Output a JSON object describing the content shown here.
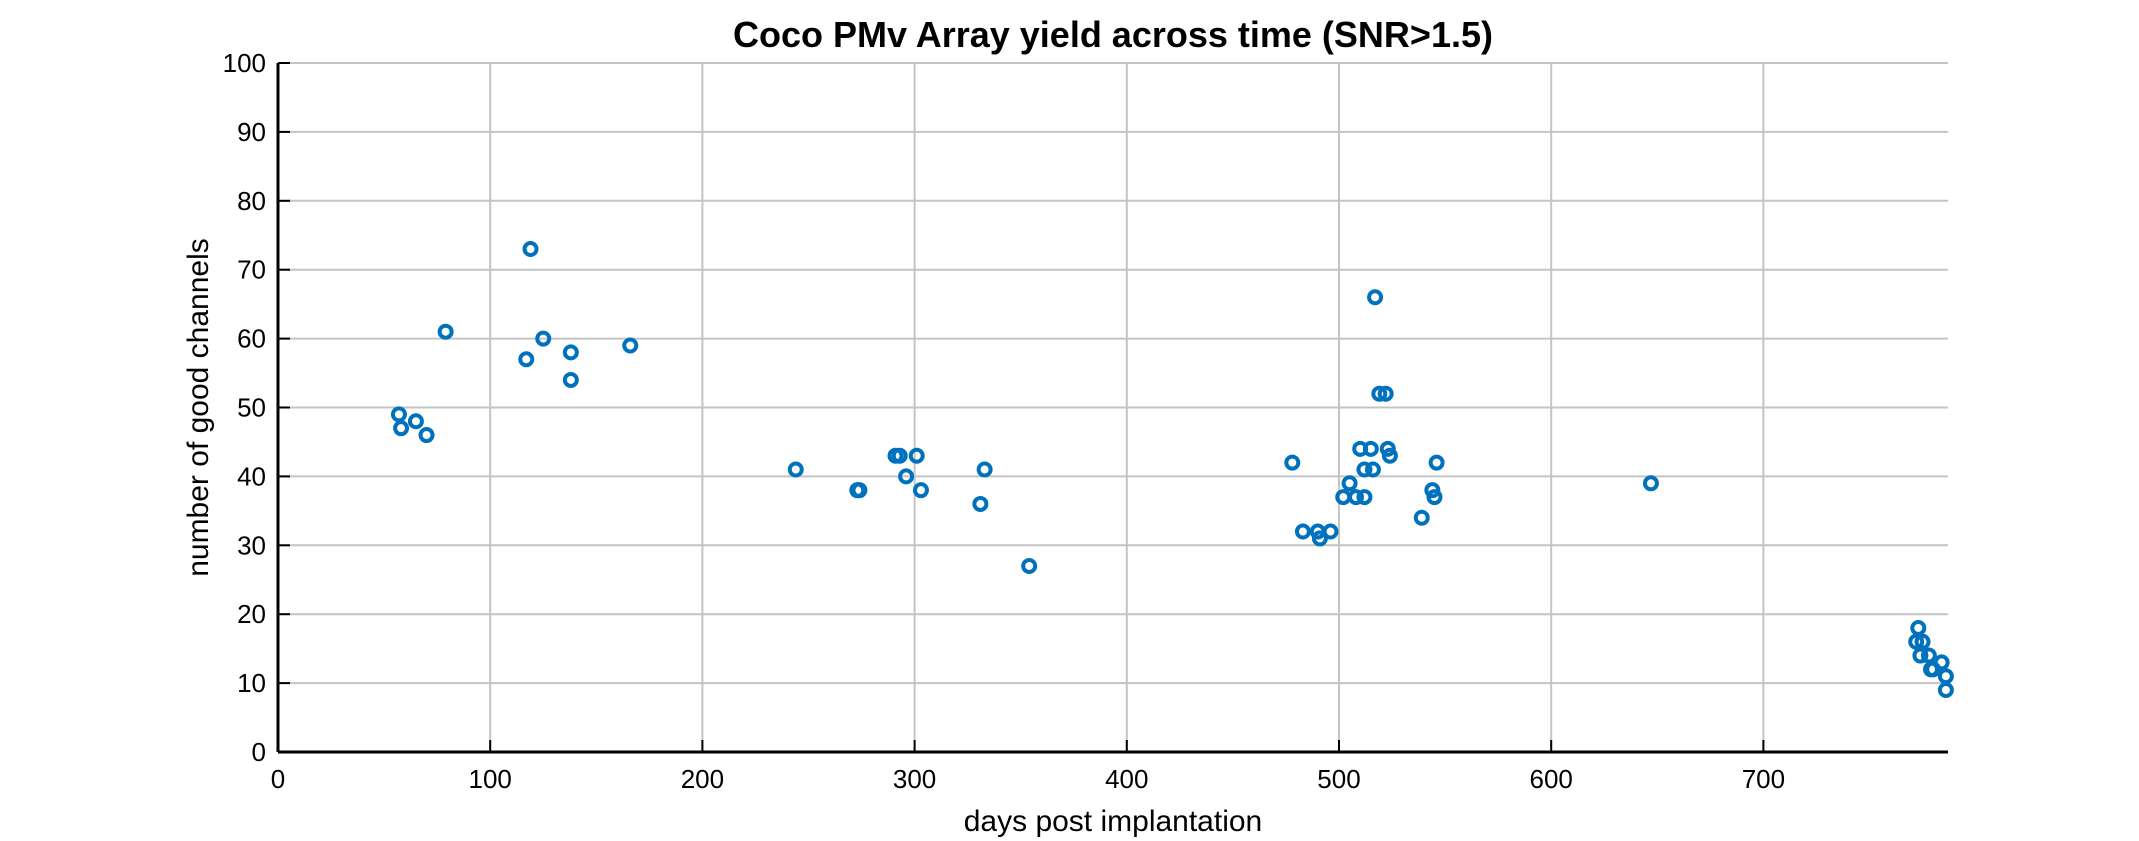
{
  "chart_data": {
    "type": "scatter",
    "title": "Coco PMv Array yield across time (SNR>1.5)",
    "xlabel": "days post implantation",
    "ylabel": "number of good channels",
    "xlim": [
      0,
      787
    ],
    "ylim": [
      0,
      100
    ],
    "xticks": [
      0,
      100,
      200,
      300,
      400,
      500,
      600,
      700
    ],
    "yticks": [
      0,
      10,
      20,
      30,
      40,
      50,
      60,
      70,
      80,
      90,
      100
    ],
    "grid": true,
    "marker": "circle-open",
    "color": "#0072BD",
    "points": [
      [
        57,
        49
      ],
      [
        58,
        47
      ],
      [
        65,
        48
      ],
      [
        70,
        46
      ],
      [
        79,
        61
      ],
      [
        117,
        57
      ],
      [
        119,
        73
      ],
      [
        125,
        60
      ],
      [
        138,
        58
      ],
      [
        138,
        54
      ],
      [
        166,
        59
      ],
      [
        244,
        41
      ],
      [
        273,
        38
      ],
      [
        274,
        38
      ],
      [
        291,
        43
      ],
      [
        293,
        43
      ],
      [
        296,
        40
      ],
      [
        301,
        43
      ],
      [
        303,
        38
      ],
      [
        331,
        36
      ],
      [
        333,
        41
      ],
      [
        354,
        27
      ],
      [
        478,
        42
      ],
      [
        483,
        32
      ],
      [
        490,
        32
      ],
      [
        491,
        31
      ],
      [
        496,
        32
      ],
      [
        502,
        37
      ],
      [
        505,
        39
      ],
      [
        508,
        37
      ],
      [
        510,
        44
      ],
      [
        512,
        37
      ],
      [
        512,
        41
      ],
      [
        515,
        44
      ],
      [
        516,
        41
      ],
      [
        517,
        66
      ],
      [
        519,
        52
      ],
      [
        522,
        52
      ],
      [
        523,
        44
      ],
      [
        524,
        43
      ],
      [
        539,
        34
      ],
      [
        544,
        38
      ],
      [
        545,
        37
      ],
      [
        546,
        42
      ],
      [
        647,
        39
      ],
      [
        772,
        16
      ],
      [
        773,
        18
      ],
      [
        774,
        14
      ],
      [
        775,
        16
      ],
      [
        778,
        14
      ],
      [
        779,
        12
      ],
      [
        780,
        12
      ],
      [
        784,
        13
      ],
      [
        786,
        11
      ],
      [
        786,
        9
      ]
    ]
  }
}
